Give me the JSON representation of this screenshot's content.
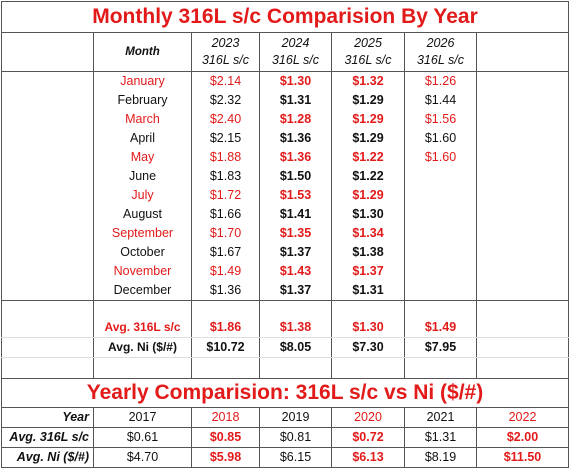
{
  "title": "Monthly 316L s/c Comparision By Year",
  "header": {
    "month": "Month",
    "years": [
      {
        "year": "2023",
        "unit": "316L s/c"
      },
      {
        "year": "2024",
        "unit": "316L s/c"
      },
      {
        "year": "2025",
        "unit": "316L s/c"
      },
      {
        "year": "2026",
        "unit": "316L s/c"
      }
    ]
  },
  "months": [
    {
      "month": "January",
      "values": [
        "$2.14",
        "$1.30",
        "$1.32",
        "$1.26"
      ]
    },
    {
      "month": "February",
      "values": [
        "$2.32",
        "$1.31",
        "$1.29",
        "$1.44"
      ]
    },
    {
      "month": "March",
      "values": [
        "$2.40",
        "$1.28",
        "$1.29",
        "$1.56"
      ]
    },
    {
      "month": "April",
      "values": [
        "$2.15",
        "$1.36",
        "$1.29",
        "$1.60"
      ]
    },
    {
      "month": "May",
      "values": [
        "$1.88",
        "$1.36",
        "$1.22",
        "$1.60"
      ]
    },
    {
      "month": "June",
      "values": [
        "$1.83",
        "$1.50",
        "$1.22"
      ]
    },
    {
      "month": "July",
      "values": [
        "$1.72",
        "$1.53",
        "$1.29"
      ]
    },
    {
      "month": "August",
      "values": [
        "$1.66",
        "$1.41",
        "$1.30"
      ]
    },
    {
      "month": "September",
      "values": [
        "$1.70",
        "$1.35",
        "$1.34"
      ]
    },
    {
      "month": "October",
      "values": [
        "$1.67",
        "$1.37",
        "$1.38"
      ]
    },
    {
      "month": "November",
      "values": [
        "$1.49",
        "$1.43",
        "$1.37"
      ]
    },
    {
      "month": "December",
      "values": [
        "$1.36",
        "$1.37",
        "$1.31"
      ]
    }
  ],
  "summary": [
    {
      "label": "Avg. 316L s/c",
      "values": [
        "$1.86",
        "$1.38",
        "$1.30",
        "$1.49"
      ]
    },
    {
      "label": "Avg. Ni ($/#)",
      "values": [
        "$10.72",
        "$8.05",
        "$7.30",
        "$7.95"
      ]
    }
  ],
  "yearly": {
    "title": "Yearly Comparision: 316L s/c vs Ni ($/#)",
    "rows": [
      {
        "label": "Year",
        "values": [
          "2017",
          "2018",
          "2019",
          "2020",
          "2021",
          "2022"
        ]
      },
      {
        "label": "Avg. 316L s/c",
        "values": [
          "$0.61",
          "$0.85",
          "$0.81",
          "$0.72",
          "$1.31",
          "$2.00"
        ]
      },
      {
        "label": "Avg. Ni ($/#)",
        "values": [
          "$4.70",
          "$5.98",
          "$6.15",
          "$6.13",
          "$8.19",
          "$11.50"
        ]
      }
    ]
  }
}
